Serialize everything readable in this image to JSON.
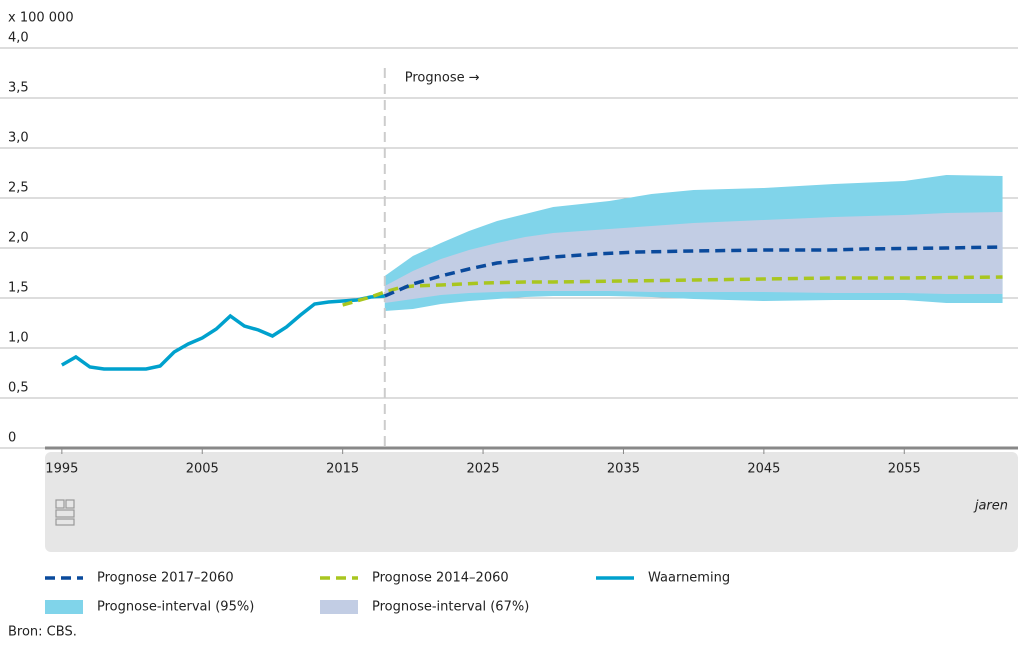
{
  "chart_data": {
    "type": "line",
    "unit_label": "x 100 000",
    "x_axis_label": "jaren",
    "annotation": "Prognose →",
    "divider_x": 2018,
    "source": "Bron: CBS.",
    "xlim": [
      1993.8,
      2063.1
    ],
    "xticks": [
      1995,
      2005,
      2015,
      2025,
      2035,
      2045,
      2055
    ],
    "ylim": [
      0,
      4
    ],
    "yticks": [
      0,
      {
        "value": 0.5,
        "label": "0,5"
      },
      {
        "value": 1,
        "label": "1,0"
      },
      {
        "value": 1.5,
        "label": "1,5"
      },
      {
        "value": 2,
        "label": "2,0"
      },
      {
        "value": 2.5,
        "label": "2,5"
      },
      {
        "value": 3,
        "label": "3,0"
      },
      {
        "value": 3.5,
        "label": "3,5"
      },
      {
        "value": 4,
        "label": "4,0"
      }
    ],
    "grid": true,
    "series": [
      {
        "name": "Prognose 2017–2060",
        "kind": "dashed",
        "color": "#0a4a9c",
        "x": [
          2018,
          2019,
          2020,
          2022,
          2024,
          2026,
          2028,
          2030,
          2033,
          2036,
          2040,
          2045,
          2050,
          2052,
          2058,
          2062
        ],
        "values": [
          1.52,
          1.58,
          1.64,
          1.72,
          1.79,
          1.85,
          1.88,
          1.91,
          1.94,
          1.96,
          1.97,
          1.98,
          1.98,
          1.99,
          2.0,
          2.01
        ]
      },
      {
        "name": "Prognose 2014–2060",
        "kind": "dashed",
        "color": "#a9c61f",
        "x": [
          2015,
          2016,
          2017,
          2018,
          2019,
          2020,
          2022,
          2025,
          2028,
          2030,
          2035,
          2040,
          2045,
          2050,
          2055,
          2062
        ],
        "values": [
          1.43,
          1.47,
          1.51,
          1.56,
          1.6,
          1.62,
          1.63,
          1.65,
          1.66,
          1.66,
          1.67,
          1.68,
          1.69,
          1.7,
          1.7,
          1.71
        ]
      },
      {
        "name": "Waarneming",
        "kind": "solid",
        "color": "#00a1cd",
        "x": [
          1995,
          1996,
          1997,
          1998,
          1999,
          2000,
          2001,
          2002,
          2003,
          2004,
          2005,
          2006,
          2007,
          2008,
          2009,
          2010,
          2011,
          2012,
          2013,
          2014,
          2015,
          2016,
          2017,
          2018
        ],
        "values": [
          0.83,
          0.91,
          0.81,
          0.79,
          0.79,
          0.79,
          0.79,
          0.82,
          0.96,
          1.04,
          1.1,
          1.19,
          1.32,
          1.22,
          1.18,
          1.12,
          1.21,
          1.33,
          1.44,
          1.46,
          1.47,
          1.48,
          1.51,
          1.52
        ]
      },
      {
        "name": "Prognose-interval (95%)",
        "kind": "band",
        "color": "#80d4ea",
        "x": [
          2018,
          2020,
          2022,
          2024,
          2026,
          2028,
          2030,
          2034,
          2037,
          2040,
          2045,
          2050,
          2055,
          2058,
          2062
        ],
        "upper": [
          1.72,
          1.92,
          2.05,
          2.17,
          2.27,
          2.34,
          2.41,
          2.47,
          2.54,
          2.58,
          2.6,
          2.64,
          2.67,
          2.73,
          2.72
        ],
        "lower": [
          1.37,
          1.39,
          1.44,
          1.47,
          1.49,
          1.51,
          1.52,
          1.52,
          1.51,
          1.49,
          1.47,
          1.48,
          1.48,
          1.45,
          1.45
        ]
      },
      {
        "name": "Prognose-interval (67%)",
        "kind": "band",
        "color": "#c2cde4",
        "x": [
          2018,
          2020,
          2022,
          2024,
          2026,
          2028,
          2030,
          2034,
          2037,
          2040,
          2045,
          2050,
          2055,
          2058,
          2062
        ],
        "upper": [
          1.62,
          1.77,
          1.89,
          1.98,
          2.05,
          2.11,
          2.15,
          2.19,
          2.22,
          2.25,
          2.28,
          2.31,
          2.33,
          2.35,
          2.36
        ],
        "lower": [
          1.45,
          1.49,
          1.53,
          1.55,
          1.56,
          1.57,
          1.57,
          1.57,
          1.56,
          1.56,
          1.56,
          1.55,
          1.55,
          1.54,
          1.54
        ]
      }
    ]
  }
}
